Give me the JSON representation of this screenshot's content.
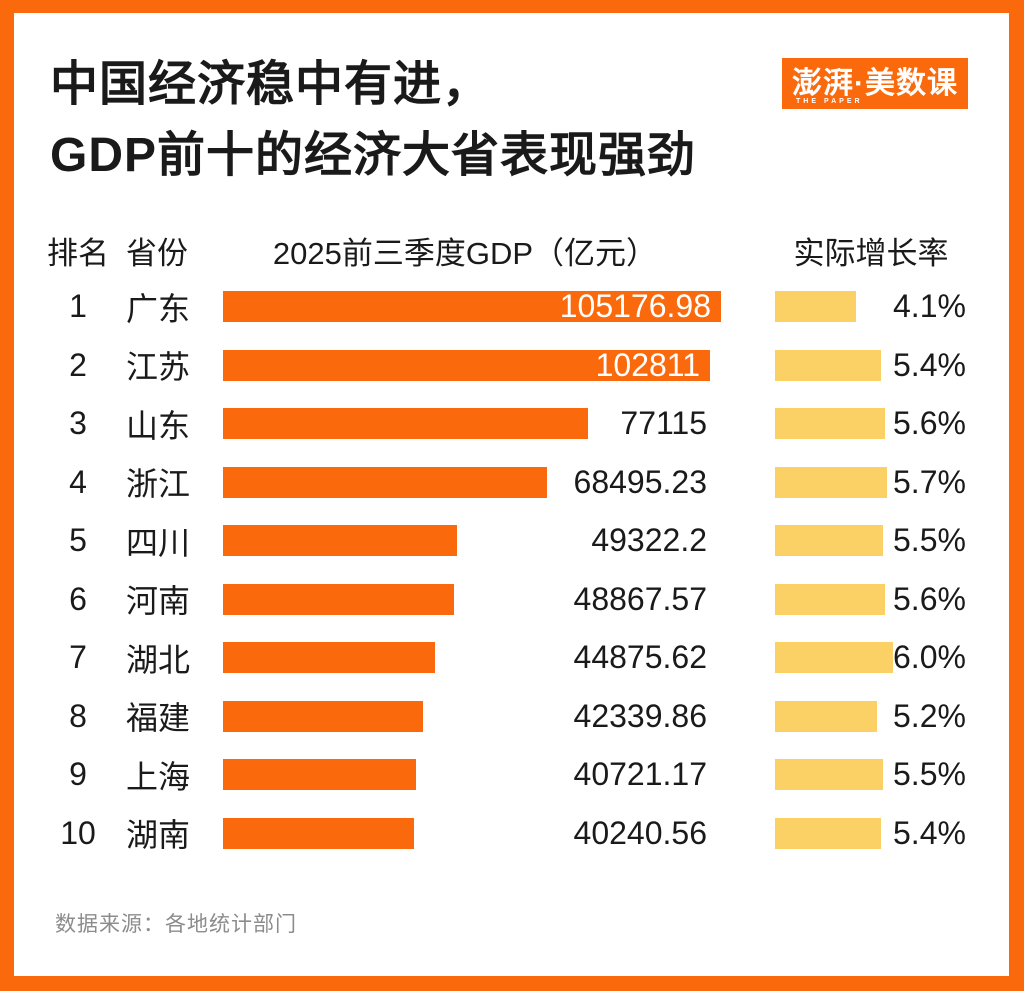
{
  "title": {
    "line1": "中国经济稳中有进，",
    "line2": "GDP前十的经济大省表现强劲"
  },
  "logo": {
    "text": "澎湃·美数课",
    "subtext": "THE PAPER"
  },
  "headers": {
    "rank": "排名",
    "province": "省份",
    "gdp": "2025前三季度GDP（亿元）",
    "growth": "实际增长率"
  },
  "rows": [
    {
      "rank": "1",
      "province": "广东",
      "gdp": 105176.98,
      "gdp_label": "105176.98",
      "rate": 4.1,
      "rate_label": "4.1%",
      "value_inside": true
    },
    {
      "rank": "2",
      "province": "江苏",
      "gdp": 102811,
      "gdp_label": "102811",
      "rate": 5.4,
      "rate_label": "5.4%",
      "value_inside": true
    },
    {
      "rank": "3",
      "province": "山东",
      "gdp": 77115,
      "gdp_label": "77115",
      "rate": 5.6,
      "rate_label": "5.6%",
      "value_inside": false
    },
    {
      "rank": "4",
      "province": "浙江",
      "gdp": 68495.23,
      "gdp_label": "68495.23",
      "rate": 5.7,
      "rate_label": "5.7%",
      "value_inside": false
    },
    {
      "rank": "5",
      "province": "四川",
      "gdp": 49322.2,
      "gdp_label": "49322.2",
      "rate": 5.5,
      "rate_label": "5.5%",
      "value_inside": false
    },
    {
      "rank": "6",
      "province": "河南",
      "gdp": 48867.57,
      "gdp_label": "48867.57",
      "rate": 5.6,
      "rate_label": "5.6%",
      "value_inside": false
    },
    {
      "rank": "7",
      "province": "湖北",
      "gdp": 44875.62,
      "gdp_label": "44875.62",
      "rate": 6.0,
      "rate_label": "6.0%",
      "value_inside": false
    },
    {
      "rank": "8",
      "province": "福建",
      "gdp": 42339.86,
      "gdp_label": "42339.86",
      "rate": 5.2,
      "rate_label": "5.2%",
      "value_inside": false
    },
    {
      "rank": "9",
      "province": "上海",
      "gdp": 40721.17,
      "gdp_label": "40721.17",
      "rate": 5.5,
      "rate_label": "5.5%",
      "value_inside": false
    },
    {
      "rank": "10",
      "province": "湖南",
      "gdp": 40240.56,
      "gdp_label": "40240.56",
      "rate": 5.4,
      "rate_label": "5.4%",
      "value_inside": false
    }
  ],
  "source": "数据来源：各地统计部门",
  "colors": {
    "brand_orange": "#FA6A0D",
    "bar_orange": "#FA6A0D",
    "bar_yellow": "#FBD166",
    "text_dark": "#1a1a1a",
    "text_gray": "#8c8c8c"
  },
  "chart_data": {
    "type": "bar",
    "orientation": "horizontal",
    "title": "中国经济稳中有进，GDP前十的经济大省表现强劲",
    "categories": [
      "广东",
      "江苏",
      "山东",
      "浙江",
      "四川",
      "河南",
      "湖北",
      "福建",
      "上海",
      "湖南"
    ],
    "series": [
      {
        "name": "2025前三季度GDP（亿元）",
        "values": [
          105176.98,
          102811,
          77115,
          68495.23,
          49322.2,
          48867.57,
          44875.62,
          42339.86,
          40721.17,
          40240.56
        ]
      },
      {
        "name": "实际增长率",
        "unit": "%",
        "values": [
          4.1,
          5.4,
          5.6,
          5.7,
          5.5,
          5.6,
          6.0,
          5.2,
          5.5,
          5.4
        ]
      }
    ],
    "value_labels_shown": true,
    "axes_shown": false,
    "grid": false,
    "legend_position": "column-headers",
    "source": "数据来源：各地统计部门"
  }
}
